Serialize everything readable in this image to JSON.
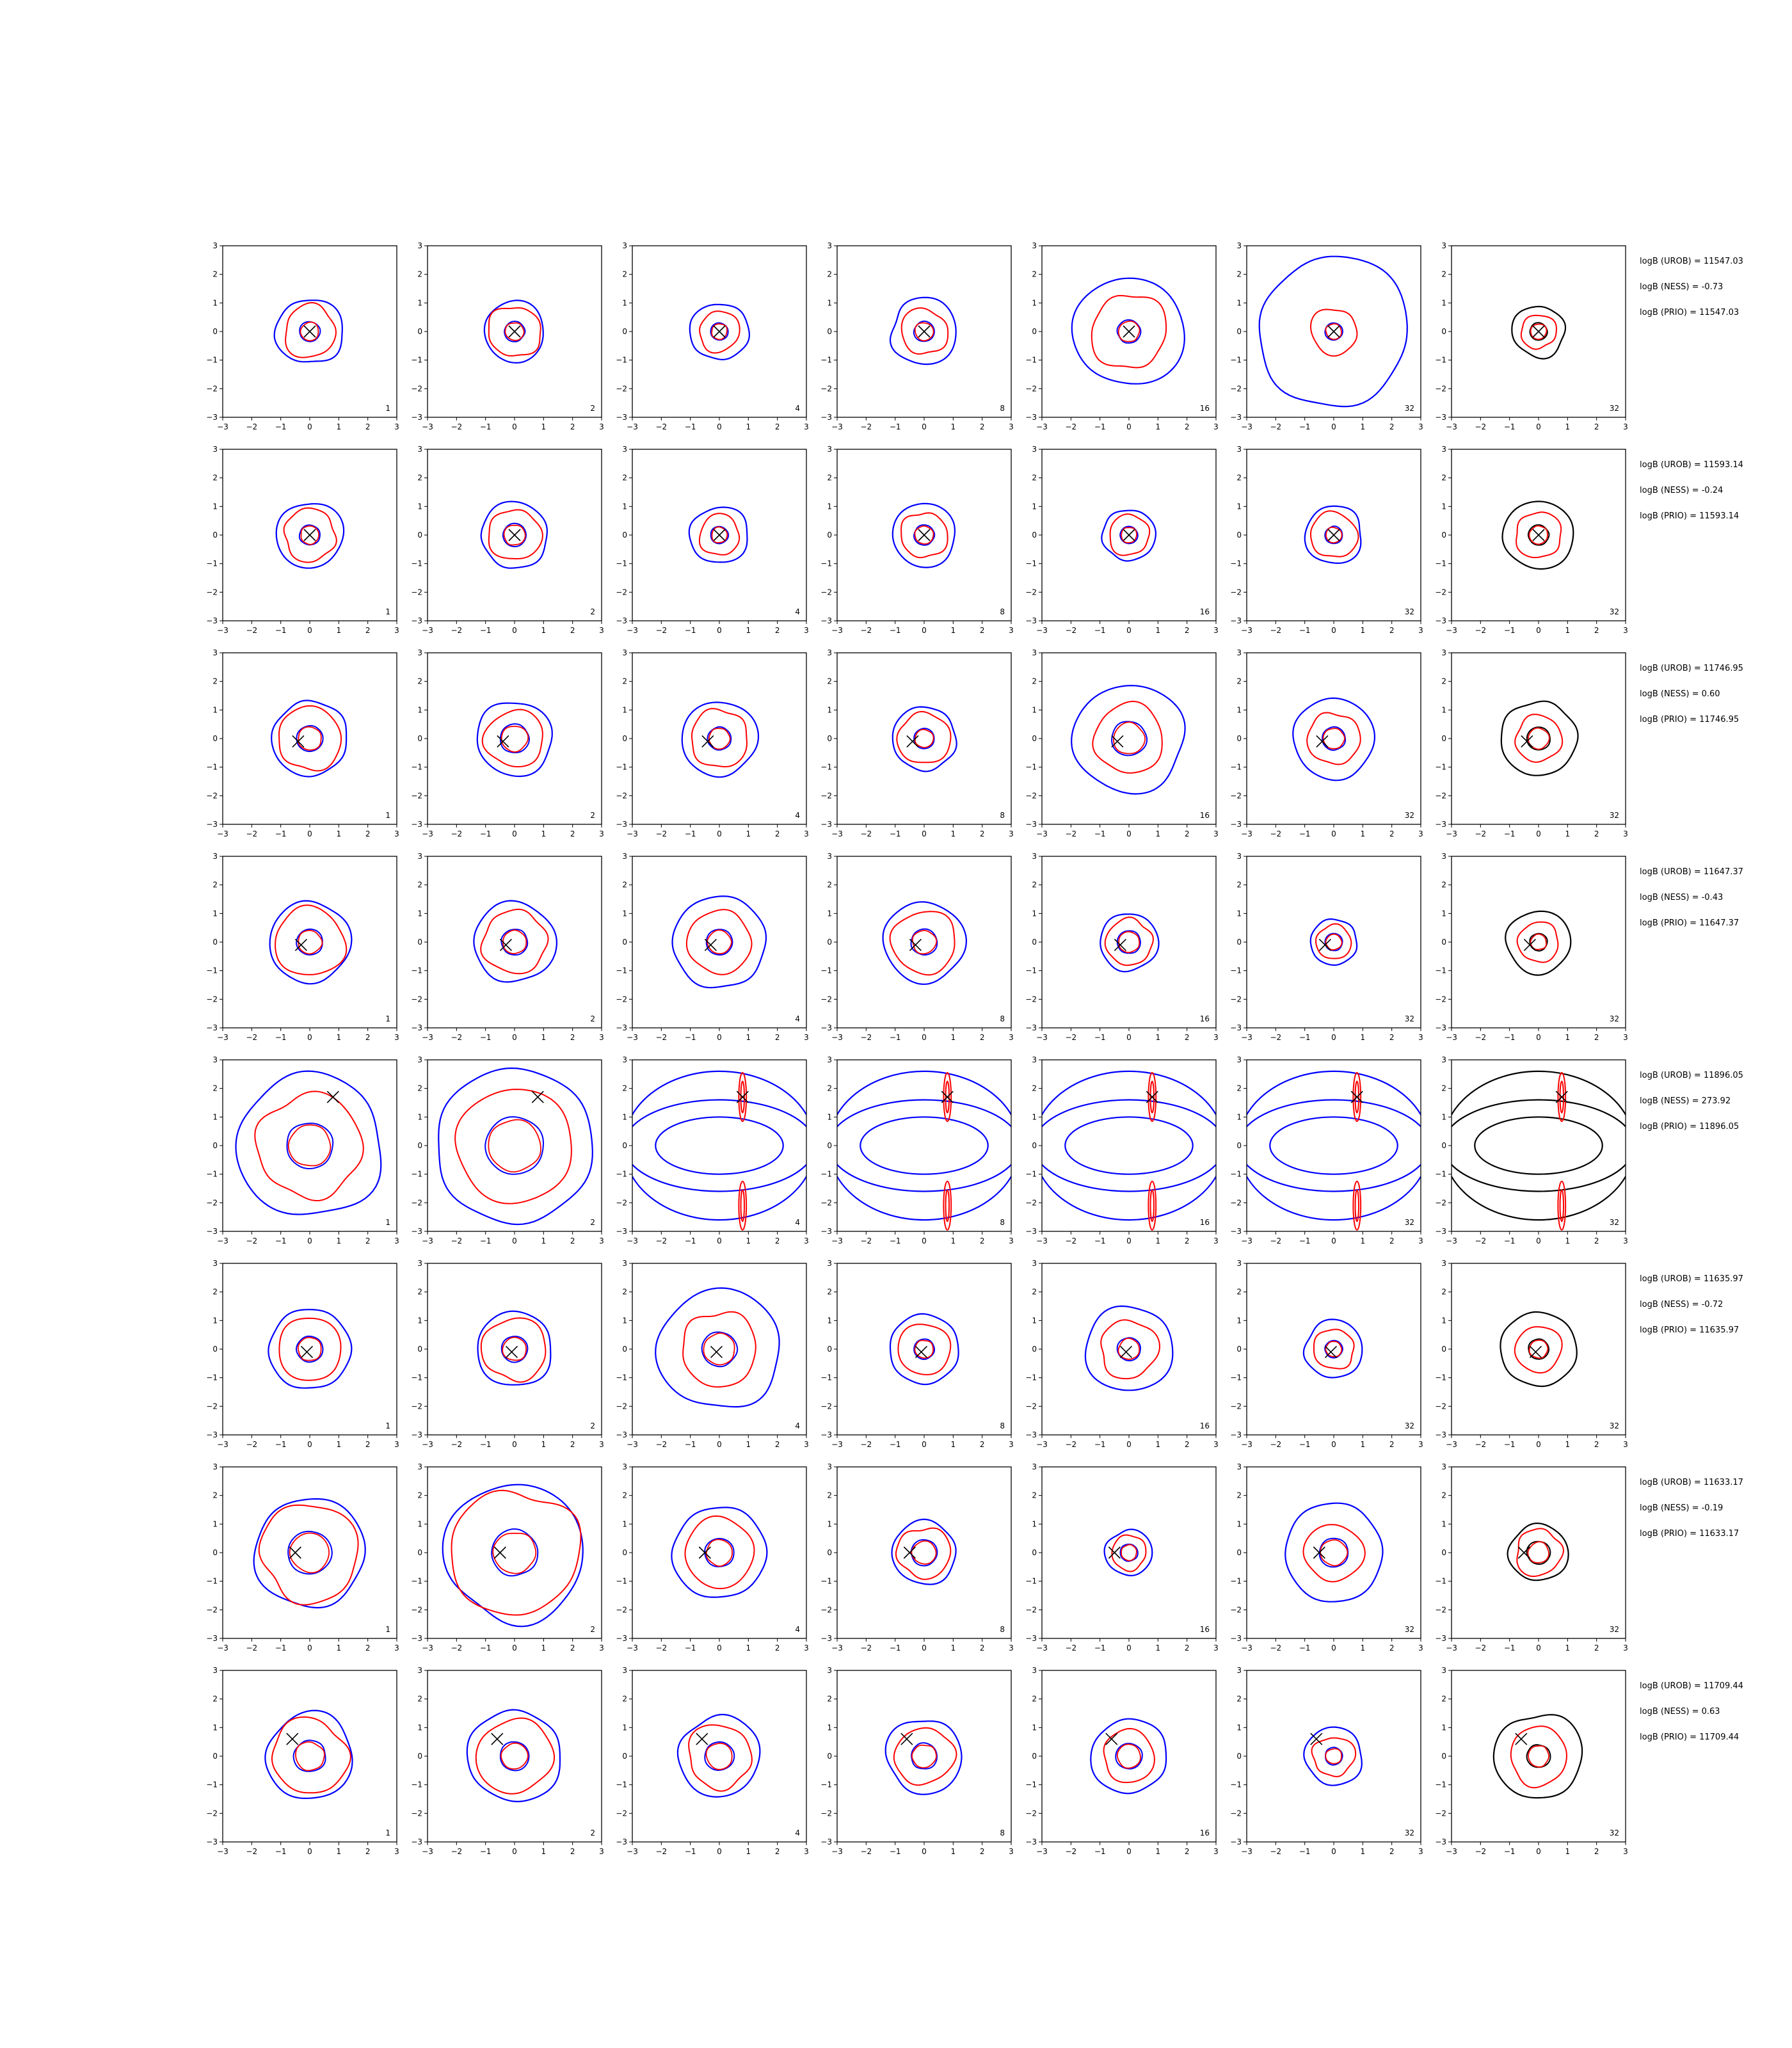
{
  "chart_data": {
    "type": "contour-grid",
    "xlim": [
      -3,
      3
    ],
    "ylim": [
      -3,
      3
    ],
    "x_ticks": [
      "−3",
      "−2",
      "−1",
      "0",
      "1",
      "2",
      "3"
    ],
    "y_ticks": [
      "3",
      "2",
      "1",
      "0",
      "−1",
      "−2",
      "−3"
    ],
    "column_numbers": [
      "1",
      "2",
      "4",
      "8",
      "16",
      "32",
      "32"
    ],
    "colors": {
      "blue": "#0000ff",
      "red": "#ff0000",
      "black": "#000000"
    },
    "contour_style": [
      {
        "outer": "blue",
        "inner": "red"
      },
      {
        "outer": "blue",
        "inner": "red"
      },
      {
        "outer": "blue",
        "inner": "red"
      },
      {
        "outer": "blue",
        "inner": "red"
      },
      {
        "outer": "blue",
        "inner": "red"
      },
      {
        "outer": "blue",
        "inner": "red"
      },
      {
        "outer": "black",
        "inner": "red"
      }
    ],
    "rows": [
      {
        "marker": [
          0,
          0
        ],
        "annotations": [
          "logB (UROB) = 11547.03",
          "logB (NESS) = -0.73",
          "logB (PRIO) = 11547.03"
        ],
        "radii": [
          [
            1.15,
            0.9,
            0.35
          ],
          [
            1.05,
            0.9,
            0.35
          ],
          [
            1.0,
            0.7,
            0.3
          ],
          [
            1.15,
            0.8,
            0.35
          ],
          [
            1.9,
            1.3,
            0.4
          ],
          [
            2.6,
            0.8,
            0.3
          ],
          [
            0.9,
            0.6,
            0.3
          ]
        ]
      },
      {
        "marker": [
          0,
          0
        ],
        "annotations": [
          "logB (UROB) = 11593.14",
          "logB (NESS) = -0.24",
          "logB (PRIO) = 11593.14"
        ],
        "radii": [
          [
            1.15,
            0.9,
            0.35
          ],
          [
            1.15,
            0.9,
            0.4
          ],
          [
            1.0,
            0.7,
            0.3
          ],
          [
            1.1,
            0.8,
            0.35
          ],
          [
            0.9,
            0.7,
            0.3
          ],
          [
            1.0,
            0.8,
            0.3
          ],
          [
            1.2,
            0.8,
            0.35
          ]
        ]
      },
      {
        "marker": [
          -0.4,
          -0.1
        ],
        "annotations": [
          "logB (UROB) = 11746.95",
          "logB (NESS) = 0.60",
          "logB (PRIO) = 11746.95"
        ],
        "radii": [
          [
            1.3,
            1.1,
            0.45
          ],
          [
            1.3,
            1.0,
            0.5
          ],
          [
            1.3,
            1.0,
            0.4
          ],
          [
            1.1,
            0.9,
            0.35
          ],
          [
            1.9,
            1.2,
            0.6
          ],
          [
            1.4,
            0.9,
            0.4
          ],
          [
            1.3,
            0.8,
            0.4
          ]
        ]
      },
      {
        "marker": [
          -0.3,
          -0.1
        ],
        "annotations": [
          "logB (UROB) = 11647.37",
          "logB (NESS) = -0.43",
          "logB (PRIO) = 11647.37"
        ],
        "radii": [
          [
            1.4,
            1.2,
            0.45
          ],
          [
            1.4,
            1.1,
            0.45
          ],
          [
            1.6,
            1.1,
            0.45
          ],
          [
            1.4,
            1.1,
            0.45
          ],
          [
            1.0,
            0.8,
            0.4
          ],
          [
            0.8,
            0.6,
            0.3
          ],
          [
            1.1,
            0.7,
            0.3
          ]
        ]
      },
      {
        "marker": [
          0.8,
          1.7
        ],
        "annotations": [
          "logB (UROB) = 11896.05",
          "logB (NESS) = 273.92",
          "logB (PRIO) = 11896.05"
        ],
        "radii": [
          [
            2.5,
            1.8,
            0.8
          ],
          [
            2.7,
            2.0,
            1.0
          ],
          [
            3.0,
            1.8,
            1.0
          ],
          [
            3.0,
            2.0,
            1.3
          ],
          [
            3.0,
            2.0,
            1.4
          ],
          [
            3.0,
            2.0,
            1.4
          ],
          [
            3.0,
            2.0,
            1.4
          ]
        ]
      },
      {
        "marker": [
          -0.1,
          -0.1
        ],
        "annotations": [
          "logB (UROB) = 11635.97",
          "logB (NESS) = -0.72",
          "logB (PRIO) = 11635.97"
        ],
        "radii": [
          [
            1.4,
            1.1,
            0.45
          ],
          [
            1.3,
            1.1,
            0.45
          ],
          [
            2.1,
            1.3,
            0.6
          ],
          [
            1.2,
            0.9,
            0.35
          ],
          [
            1.5,
            1.0,
            0.4
          ],
          [
            1.0,
            0.7,
            0.3
          ],
          [
            1.3,
            0.8,
            0.35
          ]
        ]
      },
      {
        "marker": [
          -0.5,
          0.0
        ],
        "annotations": [
          "logB (UROB) = 11633.17",
          "logB (NESS) = -0.19",
          "logB (PRIO) = 11633.17"
        ],
        "radii": [
          [
            1.9,
            1.7,
            0.75
          ],
          [
            2.4,
            2.2,
            0.8
          ],
          [
            1.6,
            1.2,
            0.5
          ],
          [
            1.1,
            0.9,
            0.45
          ],
          [
            0.8,
            0.6,
            0.3
          ],
          [
            1.7,
            1.0,
            0.5
          ],
          [
            1.0,
            0.8,
            0.4
          ]
        ]
      },
      {
        "marker": [
          -0.6,
          0.6
        ],
        "annotations": [
          "logB (UROB) = 11709.44",
          "logB (NESS) = 0.63",
          "logB (PRIO) = 11709.44"
        ],
        "radii": [
          [
            1.5,
            1.3,
            0.55
          ],
          [
            1.6,
            1.3,
            0.5
          ],
          [
            1.4,
            1.1,
            0.5
          ],
          [
            1.3,
            1.0,
            0.45
          ],
          [
            1.3,
            0.9,
            0.45
          ],
          [
            1.0,
            0.7,
            0.3
          ],
          [
            1.5,
            1.0,
            0.4
          ]
        ]
      }
    ]
  }
}
